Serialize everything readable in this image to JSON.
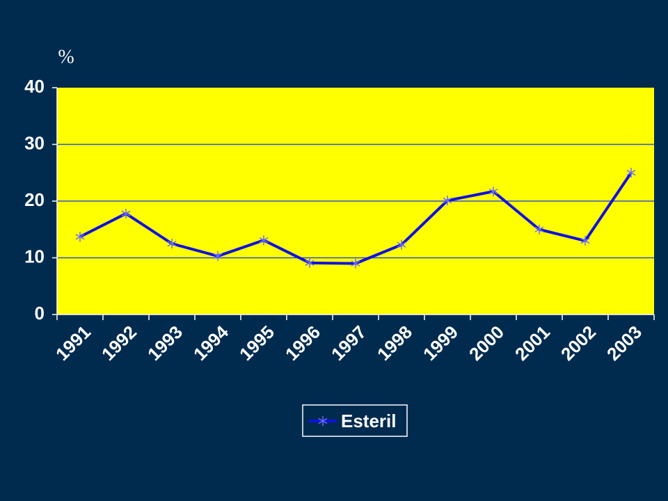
{
  "chart_data": {
    "type": "line",
    "y_label": "%",
    "categories": [
      "1991",
      "1992",
      "1993",
      "1994",
      "1995",
      "1996",
      "1997",
      "1998",
      "1999",
      "2000",
      "2001",
      "2002",
      "2003"
    ],
    "series": [
      {
        "name": "Esteril",
        "color": "#1010e0",
        "values": [
          13.7,
          17.8,
          12.5,
          10.3,
          13.1,
          9.1,
          9,
          12.3,
          20.1,
          21.7,
          15,
          13,
          25
        ]
      }
    ],
    "ylim": [
      0,
      40
    ],
    "yticks": [
      0,
      10,
      20,
      30,
      40
    ],
    "grid": true,
    "grid_color": "#3050d0",
    "plot_color": "#ffff00",
    "legend": "bottom"
  }
}
